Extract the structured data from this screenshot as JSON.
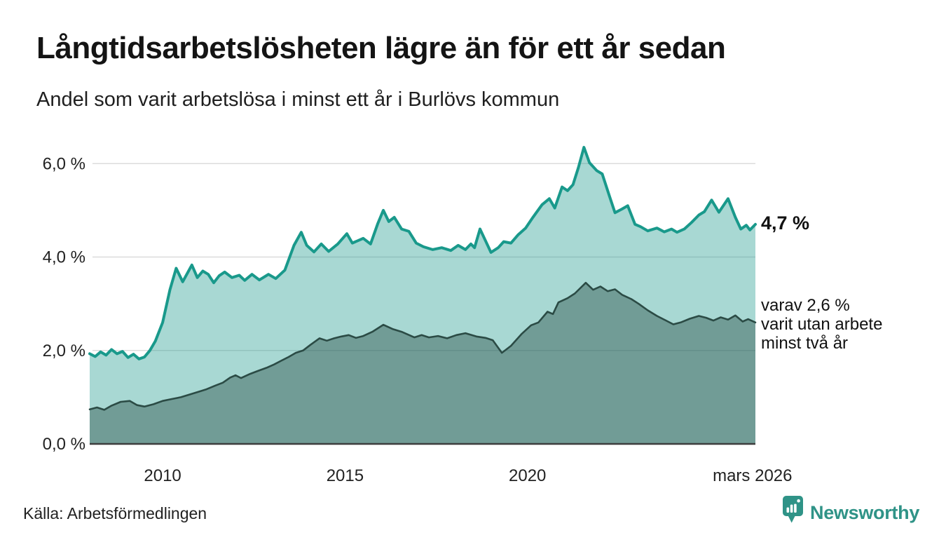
{
  "chart_data": {
    "type": "area",
    "title": "Långtidsarbetslösheten lägre än för ett år sedan",
    "subtitle": "Andel som varit arbetslösa i minst ett år i Burlövs kommun",
    "xlabel": "",
    "ylabel": "",
    "xlim": [
      2008,
      2026.25
    ],
    "ylim": [
      0,
      6.5
    ],
    "grid": true,
    "grid_color": "#dcdcdc",
    "axis_line_color": "#3e3e3e",
    "x_ticks": [
      {
        "label": "2010",
        "year": 2010
      },
      {
        "label": "2015",
        "year": 2015
      },
      {
        "label": "2020",
        "year": 2020
      },
      {
        "label": "mars 2026",
        "year": 2026.17
      }
    ],
    "y_ticks": [
      {
        "label": "0,0 %",
        "value": 0
      },
      {
        "label": "2,0 %",
        "value": 2
      },
      {
        "label": "4,0 %",
        "value": 4
      },
      {
        "label": "6,0 %",
        "value": 6
      }
    ],
    "series": [
      {
        "name": "Andel arbetslösa minst ett år",
        "color": "#19998b",
        "fill": "rgba(25,153,139,0.38)",
        "width": 4,
        "points": [
          [
            2008.0,
            1.93
          ],
          [
            2008.15,
            1.87
          ],
          [
            2008.3,
            1.97
          ],
          [
            2008.45,
            1.9
          ],
          [
            2008.6,
            2.02
          ],
          [
            2008.75,
            1.93
          ],
          [
            2008.9,
            1.98
          ],
          [
            2009.05,
            1.85
          ],
          [
            2009.2,
            1.92
          ],
          [
            2009.35,
            1.82
          ],
          [
            2009.5,
            1.86
          ],
          [
            2009.65,
            2.0
          ],
          [
            2009.8,
            2.2
          ],
          [
            2010.0,
            2.6
          ],
          [
            2010.2,
            3.3
          ],
          [
            2010.37,
            3.76
          ],
          [
            2010.55,
            3.47
          ],
          [
            2010.8,
            3.83
          ],
          [
            2010.95,
            3.56
          ],
          [
            2011.1,
            3.7
          ],
          [
            2011.25,
            3.63
          ],
          [
            2011.4,
            3.45
          ],
          [
            2011.55,
            3.6
          ],
          [
            2011.7,
            3.68
          ],
          [
            2011.9,
            3.56
          ],
          [
            2012.1,
            3.61
          ],
          [
            2012.25,
            3.5
          ],
          [
            2012.45,
            3.63
          ],
          [
            2012.65,
            3.51
          ],
          [
            2012.9,
            3.63
          ],
          [
            2013.1,
            3.54
          ],
          [
            2013.35,
            3.72
          ],
          [
            2013.6,
            4.25
          ],
          [
            2013.8,
            4.53
          ],
          [
            2013.95,
            4.25
          ],
          [
            2014.15,
            4.11
          ],
          [
            2014.35,
            4.28
          ],
          [
            2014.55,
            4.12
          ],
          [
            2014.8,
            4.28
          ],
          [
            2015.05,
            4.5
          ],
          [
            2015.2,
            4.3
          ],
          [
            2015.5,
            4.4
          ],
          [
            2015.7,
            4.28
          ],
          [
            2015.9,
            4.72
          ],
          [
            2016.05,
            5.0
          ],
          [
            2016.2,
            4.76
          ],
          [
            2016.35,
            4.85
          ],
          [
            2016.55,
            4.6
          ],
          [
            2016.75,
            4.55
          ],
          [
            2016.95,
            4.3
          ],
          [
            2017.15,
            4.22
          ],
          [
            2017.4,
            4.16
          ],
          [
            2017.65,
            4.2
          ],
          [
            2017.9,
            4.14
          ],
          [
            2018.1,
            4.25
          ],
          [
            2018.3,
            4.16
          ],
          [
            2018.45,
            4.28
          ],
          [
            2018.55,
            4.2
          ],
          [
            2018.7,
            4.6
          ],
          [
            2018.85,
            4.35
          ],
          [
            2019.0,
            4.1
          ],
          [
            2019.2,
            4.2
          ],
          [
            2019.35,
            4.33
          ],
          [
            2019.55,
            4.3
          ],
          [
            2019.75,
            4.48
          ],
          [
            2019.95,
            4.62
          ],
          [
            2020.15,
            4.85
          ],
          [
            2020.4,
            5.12
          ],
          [
            2020.6,
            5.25
          ],
          [
            2020.75,
            5.05
          ],
          [
            2020.95,
            5.5
          ],
          [
            2021.1,
            5.42
          ],
          [
            2021.25,
            5.55
          ],
          [
            2021.4,
            5.92
          ],
          [
            2021.55,
            6.35
          ],
          [
            2021.7,
            6.02
          ],
          [
            2021.9,
            5.85
          ],
          [
            2022.05,
            5.78
          ],
          [
            2022.25,
            5.3
          ],
          [
            2022.4,
            4.95
          ],
          [
            2022.6,
            5.03
          ],
          [
            2022.75,
            5.1
          ],
          [
            2022.95,
            4.7
          ],
          [
            2023.1,
            4.65
          ],
          [
            2023.3,
            4.56
          ],
          [
            2023.55,
            4.62
          ],
          [
            2023.75,
            4.54
          ],
          [
            2023.95,
            4.6
          ],
          [
            2024.1,
            4.53
          ],
          [
            2024.3,
            4.6
          ],
          [
            2024.5,
            4.74
          ],
          [
            2024.7,
            4.9
          ],
          [
            2024.85,
            4.97
          ],
          [
            2025.05,
            5.22
          ],
          [
            2025.25,
            4.96
          ],
          [
            2025.5,
            5.25
          ],
          [
            2025.7,
            4.85
          ],
          [
            2025.85,
            4.6
          ],
          [
            2026.0,
            4.68
          ],
          [
            2026.1,
            4.58
          ],
          [
            2026.25,
            4.7
          ]
        ]
      },
      {
        "name": "Varav utan arbete minst två år",
        "color": "#2b4b45",
        "fill": "rgba(38,74,66,0.42)",
        "width": 2.6,
        "points": [
          [
            2008.0,
            0.74
          ],
          [
            2008.2,
            0.78
          ],
          [
            2008.4,
            0.73
          ],
          [
            2008.6,
            0.82
          ],
          [
            2008.85,
            0.9
          ],
          [
            2009.1,
            0.92
          ],
          [
            2009.3,
            0.83
          ],
          [
            2009.5,
            0.8
          ],
          [
            2009.75,
            0.85
          ],
          [
            2010.0,
            0.92
          ],
          [
            2010.25,
            0.96
          ],
          [
            2010.5,
            1.0
          ],
          [
            2010.75,
            1.06
          ],
          [
            2011.0,
            1.12
          ],
          [
            2011.2,
            1.17
          ],
          [
            2011.45,
            1.25
          ],
          [
            2011.65,
            1.31
          ],
          [
            2011.85,
            1.42
          ],
          [
            2012.0,
            1.47
          ],
          [
            2012.15,
            1.41
          ],
          [
            2012.4,
            1.5
          ],
          [
            2012.6,
            1.56
          ],
          [
            2012.85,
            1.63
          ],
          [
            2013.05,
            1.7
          ],
          [
            2013.25,
            1.78
          ],
          [
            2013.45,
            1.86
          ],
          [
            2013.65,
            1.95
          ],
          [
            2013.85,
            2.0
          ],
          [
            2014.05,
            2.12
          ],
          [
            2014.3,
            2.26
          ],
          [
            2014.5,
            2.21
          ],
          [
            2014.7,
            2.26
          ],
          [
            2014.9,
            2.3
          ],
          [
            2015.1,
            2.33
          ],
          [
            2015.3,
            2.27
          ],
          [
            2015.5,
            2.31
          ],
          [
            2015.75,
            2.4
          ],
          [
            2016.05,
            2.55
          ],
          [
            2016.3,
            2.46
          ],
          [
            2016.55,
            2.4
          ],
          [
            2016.9,
            2.28
          ],
          [
            2017.1,
            2.33
          ],
          [
            2017.3,
            2.28
          ],
          [
            2017.55,
            2.31
          ],
          [
            2017.8,
            2.26
          ],
          [
            2018.05,
            2.33
          ],
          [
            2018.3,
            2.37
          ],
          [
            2018.6,
            2.3
          ],
          [
            2018.85,
            2.27
          ],
          [
            2019.05,
            2.22
          ],
          [
            2019.3,
            1.95
          ],
          [
            2019.55,
            2.1
          ],
          [
            2019.85,
            2.36
          ],
          [
            2020.1,
            2.54
          ],
          [
            2020.3,
            2.6
          ],
          [
            2020.55,
            2.83
          ],
          [
            2020.7,
            2.78
          ],
          [
            2020.85,
            3.03
          ],
          [
            2021.1,
            3.12
          ],
          [
            2021.3,
            3.22
          ],
          [
            2021.6,
            3.45
          ],
          [
            2021.8,
            3.3
          ],
          [
            2022.0,
            3.37
          ],
          [
            2022.2,
            3.27
          ],
          [
            2022.4,
            3.31
          ],
          [
            2022.6,
            3.19
          ],
          [
            2022.85,
            3.1
          ],
          [
            2023.05,
            3.0
          ],
          [
            2023.3,
            2.86
          ],
          [
            2023.55,
            2.74
          ],
          [
            2023.8,
            2.64
          ],
          [
            2024.0,
            2.56
          ],
          [
            2024.2,
            2.6
          ],
          [
            2024.45,
            2.68
          ],
          [
            2024.7,
            2.74
          ],
          [
            2024.9,
            2.7
          ],
          [
            2025.1,
            2.64
          ],
          [
            2025.3,
            2.71
          ],
          [
            2025.5,
            2.66
          ],
          [
            2025.7,
            2.75
          ],
          [
            2025.9,
            2.62
          ],
          [
            2026.05,
            2.67
          ],
          [
            2026.25,
            2.6
          ]
        ]
      }
    ],
    "annotations": [
      {
        "text": "4,7 %",
        "value": 4.7,
        "bold": true
      },
      {
        "lines": [
          "varav 2,6 %",
          "varit utan arbete",
          "minst två år"
        ],
        "value": 2.6
      }
    ]
  },
  "footer": {
    "source": "Källa: Arbetsförmedlingen",
    "brand": "Newsworthy",
    "brand_color": "#2f9387"
  }
}
